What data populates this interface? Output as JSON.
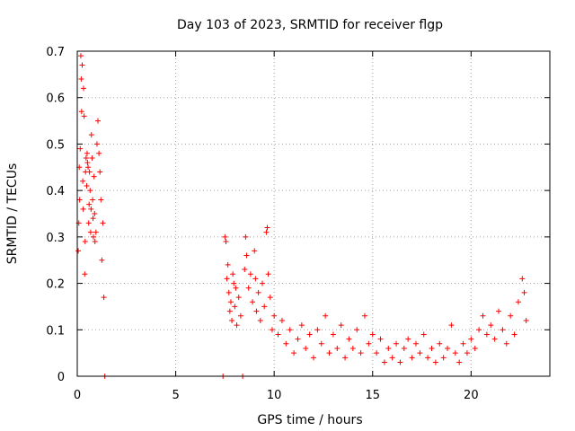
{
  "chart_data": {
    "type": "scatter",
    "title": "Day 103 of 2023, SRMTID for receiver flgp",
    "xlabel": "GPS time / hours",
    "ylabel": "SRMTID / TECUs",
    "xlim": [
      0,
      24
    ],
    "ylim": [
      0,
      0.7
    ],
    "xticks": [
      0,
      5,
      10,
      15,
      20
    ],
    "yticks": [
      0,
      0.1,
      0.2,
      0.3,
      0.4,
      0.5,
      0.6,
      0.7
    ],
    "xtick_labels": [
      "0",
      "5",
      "10",
      "15",
      "20"
    ],
    "ytick_labels": [
      "0",
      "0.1",
      "0.2",
      "0.3",
      "0.4",
      "0.5",
      "0.6",
      "0.7"
    ],
    "grid": true,
    "marker": "+",
    "color": "#ff0000",
    "series": [
      {
        "name": "flgp",
        "points": [
          [
            0.05,
            0.27
          ],
          [
            0.08,
            0.33
          ],
          [
            0.1,
            0.45
          ],
          [
            0.12,
            0.38
          ],
          [
            0.15,
            0.49
          ],
          [
            0.18,
            0.69
          ],
          [
            0.2,
            0.64
          ],
          [
            0.22,
            0.57
          ],
          [
            0.25,
            0.67
          ],
          [
            0.28,
            0.42
          ],
          [
            0.3,
            0.36
          ],
          [
            0.32,
            0.62
          ],
          [
            0.35,
            0.56
          ],
          [
            0.38,
            0.22
          ],
          [
            0.4,
            0.29
          ],
          [
            0.42,
            0.44
          ],
          [
            0.45,
            0.47
          ],
          [
            0.48,
            0.41
          ],
          [
            0.5,
            0.48
          ],
          [
            0.52,
            0.46
          ],
          [
            0.55,
            0.45
          ],
          [
            0.58,
            0.33
          ],
          [
            0.6,
            0.37
          ],
          [
            0.62,
            0.44
          ],
          [
            0.65,
            0.4
          ],
          [
            0.68,
            0.31
          ],
          [
            0.7,
            0.36
          ],
          [
            0.72,
            0.52
          ],
          [
            0.75,
            0.47
          ],
          [
            0.78,
            0.38
          ],
          [
            0.8,
            0.34
          ],
          [
            0.82,
            0.3
          ],
          [
            0.85,
            0.43
          ],
          [
            0.88,
            0.35
          ],
          [
            0.9,
            0.29
          ],
          [
            0.95,
            0.31
          ],
          [
            1.0,
            0.5
          ],
          [
            1.05,
            0.55
          ],
          [
            1.1,
            0.48
          ],
          [
            1.15,
            0.44
          ],
          [
            1.2,
            0.38
          ],
          [
            1.25,
            0.25
          ],
          [
            1.3,
            0.33
          ],
          [
            1.35,
            0.17
          ],
          [
            1.4,
            0.0
          ],
          [
            7.4,
            0.0
          ],
          [
            7.5,
            0.3
          ],
          [
            7.55,
            0.29
          ],
          [
            7.6,
            0.21
          ],
          [
            7.65,
            0.24
          ],
          [
            7.7,
            0.18
          ],
          [
            7.75,
            0.14
          ],
          [
            7.8,
            0.16
          ],
          [
            7.85,
            0.12
          ],
          [
            7.9,
            0.22
          ],
          [
            7.95,
            0.2
          ],
          [
            8.0,
            0.15
          ],
          [
            8.05,
            0.19
          ],
          [
            8.1,
            0.11
          ],
          [
            8.2,
            0.17
          ],
          [
            8.3,
            0.13
          ],
          [
            8.4,
            0.0
          ],
          [
            8.5,
            0.23
          ],
          [
            8.55,
            0.3
          ],
          [
            8.6,
            0.26
          ],
          [
            8.7,
            0.19
          ],
          [
            8.8,
            0.22
          ],
          [
            8.9,
            0.16
          ],
          [
            9.0,
            0.27
          ],
          [
            9.05,
            0.21
          ],
          [
            9.1,
            0.14
          ],
          [
            9.2,
            0.18
          ],
          [
            9.3,
            0.12
          ],
          [
            9.4,
            0.2
          ],
          [
            9.5,
            0.15
          ],
          [
            9.6,
            0.31
          ],
          [
            9.65,
            0.32
          ],
          [
            9.7,
            0.22
          ],
          [
            9.8,
            0.17
          ],
          [
            9.9,
            0.1
          ],
          [
            10.0,
            0.13
          ],
          [
            10.2,
            0.09
          ],
          [
            10.4,
            0.12
          ],
          [
            10.6,
            0.07
          ],
          [
            10.8,
            0.1
          ],
          [
            11.0,
            0.05
          ],
          [
            11.2,
            0.08
          ],
          [
            11.4,
            0.11
          ],
          [
            11.6,
            0.06
          ],
          [
            11.8,
            0.09
          ],
          [
            12.0,
            0.04
          ],
          [
            12.2,
            0.1
          ],
          [
            12.4,
            0.07
          ],
          [
            12.6,
            0.13
          ],
          [
            12.8,
            0.05
          ],
          [
            13.0,
            0.09
          ],
          [
            13.2,
            0.06
          ],
          [
            13.4,
            0.11
          ],
          [
            13.6,
            0.04
          ],
          [
            13.8,
            0.08
          ],
          [
            14.0,
            0.06
          ],
          [
            14.2,
            0.1
          ],
          [
            14.4,
            0.05
          ],
          [
            14.6,
            0.13
          ],
          [
            14.8,
            0.07
          ],
          [
            15.0,
            0.09
          ],
          [
            15.2,
            0.05
          ],
          [
            15.4,
            0.08
          ],
          [
            15.6,
            0.03
          ],
          [
            15.8,
            0.06
          ],
          [
            16.0,
            0.04
          ],
          [
            16.2,
            0.07
          ],
          [
            16.4,
            0.03
          ],
          [
            16.6,
            0.06
          ],
          [
            16.8,
            0.08
          ],
          [
            17.0,
            0.04
          ],
          [
            17.2,
            0.07
          ],
          [
            17.4,
            0.05
          ],
          [
            17.6,
            0.09
          ],
          [
            17.8,
            0.04
          ],
          [
            18.0,
            0.06
          ],
          [
            18.2,
            0.03
          ],
          [
            18.4,
            0.07
          ],
          [
            18.6,
            0.04
          ],
          [
            18.8,
            0.06
          ],
          [
            19.0,
            0.11
          ],
          [
            19.2,
            0.05
          ],
          [
            19.4,
            0.03
          ],
          [
            19.6,
            0.07
          ],
          [
            19.8,
            0.05
          ],
          [
            20.0,
            0.08
          ],
          [
            20.2,
            0.06
          ],
          [
            20.4,
            0.1
          ],
          [
            20.6,
            0.13
          ],
          [
            20.8,
            0.09
          ],
          [
            21.0,
            0.11
          ],
          [
            21.2,
            0.08
          ],
          [
            21.4,
            0.14
          ],
          [
            21.6,
            0.1
          ],
          [
            21.8,
            0.07
          ],
          [
            22.0,
            0.13
          ],
          [
            22.2,
            0.09
          ],
          [
            22.4,
            0.16
          ],
          [
            22.6,
            0.21
          ],
          [
            22.7,
            0.18
          ],
          [
            22.8,
            0.12
          ]
        ]
      }
    ]
  }
}
